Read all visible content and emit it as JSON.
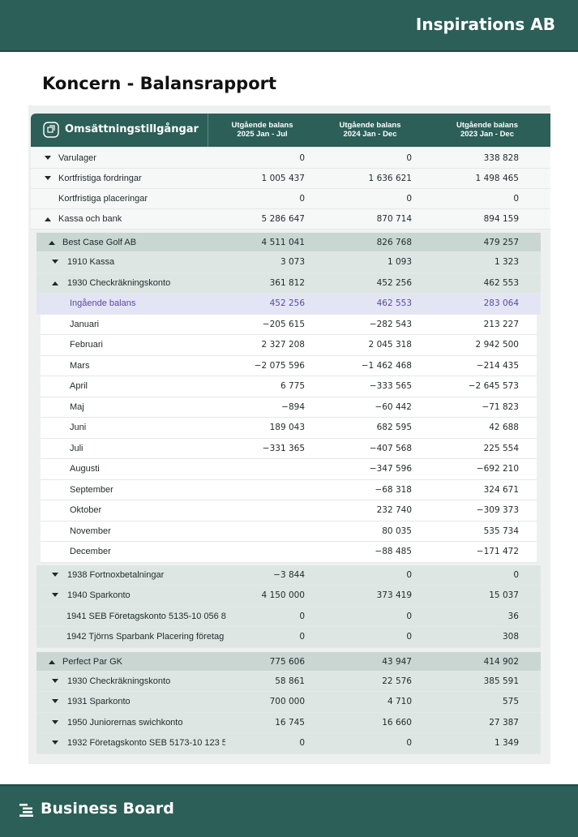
{
  "header": {
    "company": "Inspirations AB"
  },
  "page_title": "Koncern - Balansrapport",
  "table": {
    "heading": "Omsättningstillgångar",
    "columns": [
      {
        "title": "Utgående balans",
        "period": "2025 Jan - Jul"
      },
      {
        "title": "Utgående balans",
        "period": "2024 Jan - Dec"
      },
      {
        "title": "Utgående balans",
        "period": "2023 Jan - Dec"
      }
    ],
    "rows": [
      {
        "label": "Varulager",
        "expanded": false,
        "values": [
          "0",
          "0",
          "338 828"
        ]
      },
      {
        "label": "Kortfristiga fordringar",
        "expanded": false,
        "values": [
          "1 005 437",
          "1 636 621",
          "1 498 465"
        ]
      },
      {
        "label": "Kortfristiga placeringar",
        "values": [
          "0",
          "0",
          "0"
        ]
      },
      {
        "label": "Kassa och bank",
        "expanded": true,
        "values": [
          "5 286 647",
          "870 714",
          "894 159"
        ]
      }
    ],
    "groups": [
      {
        "row": {
          "label": "Best Case Golf AB",
          "expanded": true,
          "values": [
            "4 511 041",
            "826 768",
            "479 257"
          ]
        },
        "rows": [
          {
            "label": "1910 Kassa",
            "kind": "account",
            "expanded": false,
            "values": [
              "3 073",
              "1 093",
              "1 323"
            ]
          },
          {
            "label": "1930 Checkräkningskonto",
            "kind": "account",
            "expanded": true,
            "values": [
              "361 812",
              "452 256",
              "462 553"
            ]
          },
          {
            "label": "Ingående balans",
            "kind": "opening",
            "values": [
              "452 256",
              "462 553",
              "283 064"
            ]
          },
          {
            "label": "Januari",
            "kind": "month",
            "values": [
              "−205 615",
              "−282 543",
              "213 227"
            ]
          },
          {
            "label": "Februari",
            "kind": "month",
            "values": [
              "2 327 208",
              "2 045 318",
              "2 942 500"
            ]
          },
          {
            "label": "Mars",
            "kind": "month",
            "values": [
              "−2 075 596",
              "−1 462 468",
              "−214 435"
            ]
          },
          {
            "label": "April",
            "kind": "month",
            "values": [
              "6 775",
              "−333 565",
              "−2 645 573"
            ]
          },
          {
            "label": "Maj",
            "kind": "month",
            "values": [
              "−894",
              "−60 442",
              "−71 823"
            ]
          },
          {
            "label": "Juni",
            "kind": "month",
            "values": [
              "189 043",
              "682 595",
              "42 688"
            ]
          },
          {
            "label": "Juli",
            "kind": "month",
            "values": [
              "−331 365",
              "−407 568",
              "225 554"
            ]
          },
          {
            "label": "Augusti",
            "kind": "month",
            "values": [
              null,
              "−347 596",
              "−692 210"
            ]
          },
          {
            "label": "September",
            "kind": "month",
            "values": [
              null,
              "−68 318",
              "324 671"
            ]
          },
          {
            "label": "Oktober",
            "kind": "month",
            "values": [
              null,
              "232 740",
              "−309 373"
            ]
          },
          {
            "label": "November",
            "kind": "month",
            "values": [
              null,
              "80 035",
              "535 734"
            ]
          },
          {
            "label": "December",
            "kind": "month",
            "values": [
              null,
              "−88 485",
              "−171 472"
            ]
          },
          {
            "label": "1938 Fortnoxbetalningar",
            "kind": "account",
            "expanded": false,
            "values": [
              "−3 844",
              "0",
              "0"
            ]
          },
          {
            "label": "1940 Sparkonto",
            "kind": "account",
            "expanded": false,
            "values": [
              "4 150 000",
              "373 419",
              "15 037"
            ]
          },
          {
            "label": "1941 SEB Företagskonto 5135-10 056 8",
            "kind": "subaccount",
            "values": [
              "0",
              "0",
              "36"
            ]
          },
          {
            "label": "1942 Tjörns Sparbank Placering företag",
            "kind": "subaccount",
            "values": [
              "0",
              "0",
              "308"
            ]
          }
        ]
      },
      {
        "row": {
          "label": "Perfect Par GK",
          "expanded": true,
          "values": [
            "775 606",
            "43 947",
            "414 902"
          ]
        },
        "rows": [
          {
            "label": "1930 Checkräkningskonto",
            "kind": "account",
            "expanded": false,
            "values": [
              "58 861",
              "22 576",
              "385 591"
            ]
          },
          {
            "label": "1931 Sparkonto",
            "kind": "account",
            "expanded": false,
            "values": [
              "700 000",
              "4 710",
              "575"
            ]
          },
          {
            "label": "1950 Juniorernas swichkonto",
            "kind": "account",
            "expanded": false,
            "values": [
              "16 745",
              "16 660",
              "27 387"
            ]
          },
          {
            "label": "1932 Företagskonto SEB 5173-10 123 5",
            "kind": "account",
            "expanded": false,
            "values": [
              "0",
              "0",
              "1 349"
            ]
          }
        ]
      }
    ]
  },
  "footer": {
    "brand": "Business Board"
  }
}
